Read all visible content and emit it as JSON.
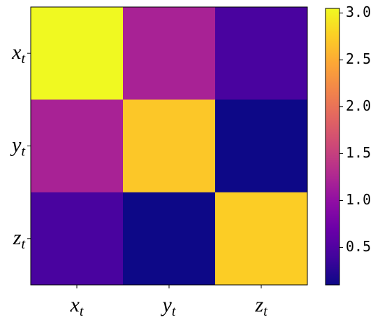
{
  "chart_data": {
    "type": "heatmap",
    "categories": [
      {
        "symbol": "x",
        "subscript": "t"
      },
      {
        "symbol": "y",
        "subscript": "t"
      },
      {
        "symbol": "z",
        "subscript": "t"
      }
    ],
    "z": [
      [
        3.05,
        1.2,
        0.45
      ],
      [
        1.2,
        2.7,
        0.1
      ],
      [
        0.45,
        0.1,
        2.75
      ]
    ],
    "colormap": "plasma",
    "clim": [
      0.1,
      3.05
    ],
    "cticks": [
      0.5,
      {
        "value": 1,
        "label": "1.0"
      },
      1.5,
      {
        "value": 2,
        "label": "2.0"
      },
      2.5,
      {
        "value": 3,
        "label": "3.0"
      }
    ]
  }
}
